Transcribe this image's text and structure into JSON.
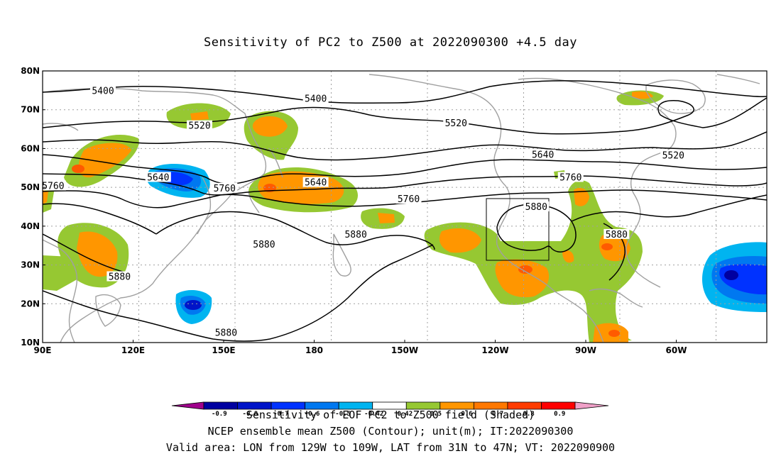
{
  "title": "Sensitivity of PC2 to Z500 at 2022090300 +4.5 day",
  "axes": {
    "lat_labels": [
      "80N",
      "70N",
      "60N",
      "50N",
      "40N",
      "30N",
      "20N",
      "10N"
    ],
    "lon_labels": [
      "90E",
      "120E",
      "150E",
      "180",
      "150W",
      "120W",
      "90W",
      "60W"
    ]
  },
  "contour_labels": [
    {
      "value": "5400",
      "lon": 110,
      "lat": 74.8
    },
    {
      "value": "5400",
      "lon": 180.5,
      "lat": 72.8
    },
    {
      "value": "5520",
      "lon": 142,
      "lat": 65.8
    },
    {
      "value": "5520",
      "lon": -133,
      "lat": 66.5
    },
    {
      "value": "5520",
      "lon": -61,
      "lat": 58.2
    },
    {
      "value": "5640",
      "lon": 128.3,
      "lat": 52.5
    },
    {
      "value": "5640",
      "lon": 180.5,
      "lat": 51.2
    },
    {
      "value": "5640",
      "lon": -104.2,
      "lat": 58.3
    },
    {
      "value": "5760",
      "lon": 93.5,
      "lat": 50.3
    },
    {
      "value": "5760",
      "lon": 150.3,
      "lat": 49.7
    },
    {
      "value": "5760",
      "lon": -148.7,
      "lat": 46.9
    },
    {
      "value": "5760",
      "lon": -95,
      "lat": 52.5
    },
    {
      "value": "5880",
      "lon": -166.2,
      "lat": 37.8
    },
    {
      "value": "5880",
      "lon": -106.4,
      "lat": 44.9
    },
    {
      "value": "5880",
      "lon": -79.8,
      "lat": 37.8
    },
    {
      "value": "5880",
      "lon": 163.4,
      "lat": 35.2
    },
    {
      "value": "5880",
      "lon": 115.5,
      "lat": 26.9
    },
    {
      "value": "5880",
      "lon": 150.8,
      "lat": 12.5
    }
  ],
  "colorbar": {
    "ticks": [
      "-0.9",
      "-0.8",
      "-0.7",
      "-0.6",
      "-0.5",
      "-0.42",
      "0.42",
      "0.5",
      "0.6",
      "0.7",
      "0.8",
      "0.9"
    ],
    "colors": [
      "#a0008c",
      "#0000a0",
      "#0014c8",
      "#0032ff",
      "#0078f0",
      "#00b4f0",
      "#ffffff",
      "#96c832",
      "#ff9600",
      "#ff7800",
      "#ff3c00",
      "#ff0000",
      "#f0a0c8"
    ]
  },
  "captions": {
    "line1": "Sensitivity of EOF PC2 to Z500 field (Shaded)",
    "line2": "NCEP ensemble mean Z500 (Contour); unit(m); IT:2022090300",
    "line3": "Valid area: LON from 129W to 109W, LAT from 31N to 47N; VT: 2022090900"
  },
  "valid_area": {
    "lon_min": -129,
    "lon_max": -109,
    "lat_min": 31,
    "lat_max": 47
  },
  "map_colors": {
    "coast": "#a0a0a0",
    "contour": "#000000",
    "grid": "#a0a0a0"
  }
}
